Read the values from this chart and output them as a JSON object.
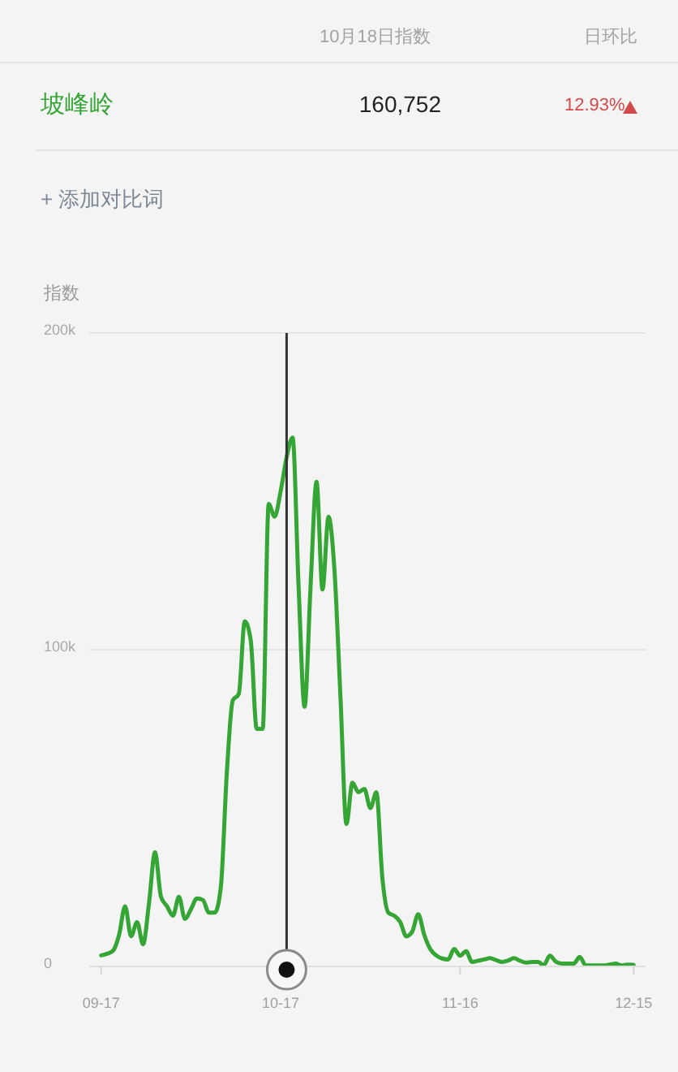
{
  "chart_data": {
    "type": "line",
    "ylabel": "指数",
    "annotations": [
      "10月18日指数",
      "日环比",
      "160,752",
      "12.93%",
      "+ 添加对比词"
    ],
    "x": [
      "--09-17",
      "--09-18",
      "--09-19",
      "--09-20",
      "--09-21",
      "--09-22",
      "--09-23",
      "--09-24",
      "--09-25",
      "--09-26",
      "--09-27",
      "--09-28",
      "--09-29",
      "--09-30",
      "--10-01",
      "--10-02",
      "--10-03",
      "--10-04",
      "--10-05",
      "--10-06",
      "--10-07",
      "--10-08",
      "--10-09",
      "--10-10",
      "--10-11",
      "--10-12",
      "--10-13",
      "--10-14",
      "--10-15",
      "--10-16",
      "--10-17",
      "--10-18",
      "--10-19",
      "--10-20",
      "--10-21",
      "--10-22",
      "--10-23",
      "--10-24",
      "--10-25",
      "--10-26",
      "--10-27",
      "--10-28",
      "--10-29",
      "--10-30",
      "--10-31",
      "--11-01",
      "--11-02",
      "--11-03",
      "--11-04",
      "--11-05",
      "--11-06",
      "--11-07",
      "--11-08",
      "--11-09",
      "--11-10",
      "--11-11",
      "--11-12",
      "--11-13",
      "--11-14",
      "--11-15",
      "--11-16",
      "--11-17",
      "--11-18",
      "--11-19",
      "--11-20",
      "--11-21",
      "--11-22",
      "--11-23",
      "--11-24",
      "--11-25",
      "--11-26",
      "--11-27",
      "--11-28",
      "--11-29",
      "--11-30",
      "--12-01",
      "--12-02",
      "--12-03",
      "--12-04",
      "--12-05",
      "--12-06",
      "--12-07",
      "--12-08",
      "--12-09",
      "--12-10",
      "--12-11",
      "--12-12",
      "--12-13",
      "--12-14",
      "--12-15"
    ],
    "series": [
      {
        "name": "坡峰岭",
        "color": "#35a635",
        "values": [
          3500,
          4000,
          5000,
          10000,
          19000,
          9500,
          14000,
          7000,
          20000,
          36000,
          22000,
          19000,
          16000,
          22000,
          15000,
          18000,
          21500,
          21000,
          17000,
          17000,
          25000,
          61000,
          84000,
          86000,
          109000,
          103000,
          75000,
          75000,
          146000,
          142000,
          150000,
          160752,
          167000,
          120000,
          82000,
          120000,
          153000,
          119000,
          142000,
          125000,
          85000,
          45000,
          58000,
          55000,
          56000,
          50000,
          55000,
          28000,
          17000,
          16000,
          14000,
          9500,
          11000,
          16500,
          10000,
          5500,
          3500,
          2500,
          2200,
          5500,
          3400,
          4800,
          1400,
          1800,
          2200,
          2600,
          2000,
          1400,
          1800,
          2600,
          1800,
          1200,
          1400,
          1400,
          400,
          3400,
          1500,
          900,
          900,
          900,
          3000,
          300,
          300,
          300,
          300,
          600,
          900,
          300,
          600,
          500
        ]
      }
    ],
    "xlim": [
      "--09-15",
      "--12-17"
    ],
    "xticks": [
      {
        "value": "--09-17",
        "label": "09-17"
      },
      {
        "value": "--10-17",
        "label": "10-17"
      },
      {
        "value": "--11-16",
        "label": "11-16"
      },
      {
        "value": "--12-15",
        "label": "12-15"
      }
    ],
    "ylim": [
      0,
      200000
    ],
    "yticks": [
      0,
      {
        "value": 100000,
        "label": "100k"
      },
      {
        "value": 200000,
        "label": "200k"
      }
    ],
    "ref_lines": [
      {
        "axis": "x",
        "value": "--10-18",
        "color": "#333333"
      }
    ],
    "grid": "y",
    "legend": "top"
  }
}
